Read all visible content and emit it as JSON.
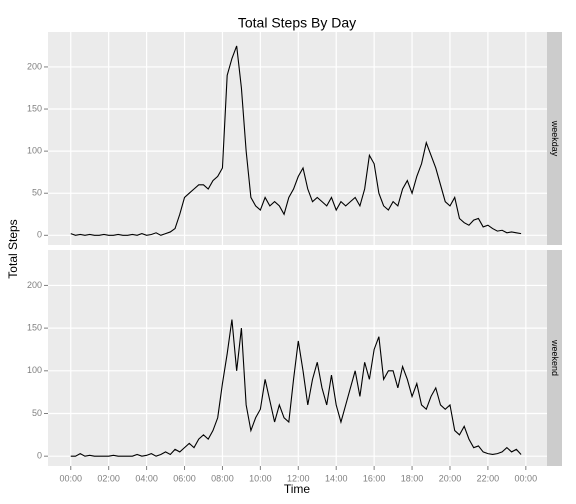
{
  "chart_data": {
    "type": "line",
    "title": "Total Steps By Day",
    "xlabel": "Time",
    "ylabel": "Total Steps",
    "x": [
      0,
      15,
      30,
      45,
      60,
      75,
      90,
      105,
      120,
      135,
      150,
      165,
      180,
      195,
      210,
      225,
      240,
      255,
      270,
      285,
      300,
      315,
      330,
      345,
      360,
      375,
      390,
      405,
      420,
      435,
      450,
      465,
      480,
      495,
      510,
      525,
      540,
      555,
      570,
      585,
      600,
      615,
      630,
      645,
      660,
      675,
      690,
      705,
      720,
      735,
      750,
      765,
      780,
      795,
      810,
      825,
      840,
      855,
      870,
      885,
      900,
      915,
      930,
      945,
      960,
      975,
      990,
      1005,
      1020,
      1035,
      1050,
      1065,
      1080,
      1095,
      1110,
      1125,
      1140,
      1155,
      1170,
      1185,
      1200,
      1215,
      1230,
      1245,
      1260,
      1275,
      1290,
      1305,
      1320,
      1335,
      1350,
      1365,
      1380,
      1395,
      1410,
      1425
    ],
    "series": [
      {
        "name": "weekday",
        "color": "#000000",
        "values": [
          2,
          0,
          1,
          0,
          1,
          0,
          0,
          1,
          0,
          0,
          1,
          0,
          0,
          1,
          0,
          2,
          0,
          1,
          3,
          0,
          2,
          4,
          8,
          25,
          45,
          50,
          55,
          60,
          60,
          55,
          65,
          70,
          80,
          190,
          210,
          225,
          175,
          100,
          45,
          35,
          30,
          45,
          35,
          40,
          35,
          25,
          45,
          55,
          70,
          80,
          55,
          40,
          45,
          40,
          35,
          45,
          30,
          40,
          35,
          40,
          45,
          35,
          55,
          95,
          85,
          50,
          35,
          30,
          40,
          35,
          55,
          65,
          50,
          70,
          85,
          110,
          95,
          80,
          60,
          40,
          35,
          45,
          20,
          15,
          12,
          18,
          20,
          10,
          12,
          8,
          5,
          6,
          3,
          4,
          3,
          2
        ]
      },
      {
        "name": "weekend",
        "color": "#000000",
        "values": [
          0,
          0,
          3,
          0,
          1,
          0,
          0,
          0,
          0,
          1,
          0,
          0,
          0,
          0,
          2,
          0,
          1,
          3,
          0,
          2,
          5,
          2,
          8,
          5,
          10,
          15,
          10,
          20,
          25,
          20,
          30,
          45,
          85,
          120,
          160,
          100,
          150,
          60,
          30,
          45,
          55,
          90,
          65,
          40,
          60,
          45,
          40,
          90,
          135,
          100,
          60,
          90,
          110,
          80,
          60,
          95,
          60,
          40,
          60,
          80,
          100,
          70,
          110,
          90,
          125,
          140,
          90,
          100,
          100,
          80,
          105,
          90,
          70,
          85,
          60,
          55,
          70,
          80,
          60,
          55,
          60,
          30,
          25,
          35,
          20,
          10,
          12,
          5,
          3,
          2,
          3,
          5,
          10,
          5,
          8,
          2
        ]
      }
    ],
    "xlim": [
      -72,
      1507
    ],
    "xticks": [
      {
        "value": 0,
        "label": "00:00"
      },
      {
        "value": 120,
        "label": "02:00"
      },
      {
        "value": 240,
        "label": "04:00"
      },
      {
        "value": 360,
        "label": "06:00"
      },
      {
        "value": 480,
        "label": "08:00"
      },
      {
        "value": 600,
        "label": "10:00"
      },
      {
        "value": 720,
        "label": "12:00"
      },
      {
        "value": 840,
        "label": "14:00"
      },
      {
        "value": 960,
        "label": "16:00"
      },
      {
        "value": 1080,
        "label": "18:00"
      },
      {
        "value": 1200,
        "label": "20:00"
      },
      {
        "value": 1320,
        "label": "22:00"
      },
      {
        "value": 1440,
        "label": "00:00"
      }
    ],
    "ylim": [
      -11.5,
      241.5
    ],
    "yticks": [
      0,
      50,
      100,
      150,
      200
    ],
    "grid": true
  }
}
